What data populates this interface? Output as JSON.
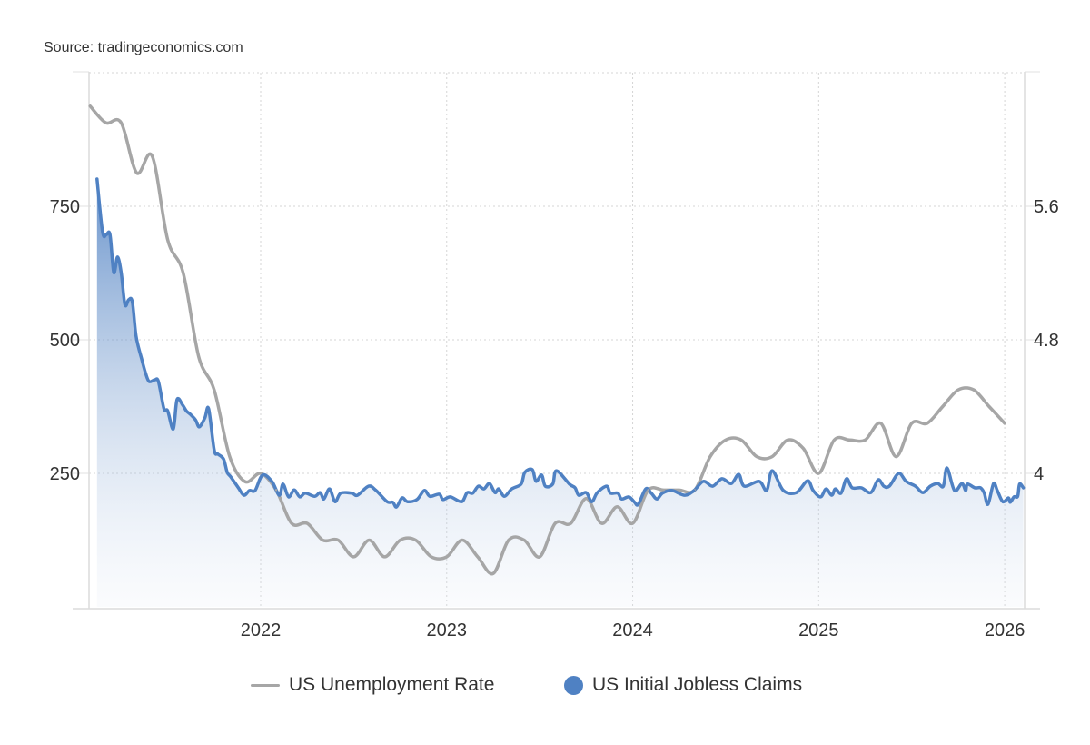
{
  "source": "Source: tradingeconomics.com",
  "chart_data": {
    "type": "line",
    "title": "",
    "xlabel": "",
    "x_ticks": [
      "2022",
      "2023",
      "2024",
      "2025",
      "2026"
    ],
    "x_range": [
      2021.077,
      2026.107
    ],
    "left_axis": {
      "ticks": [
        "250",
        "500",
        "750"
      ],
      "tick_values": [
        250,
        500,
        750
      ],
      "range": [
        0,
        1000
      ]
    },
    "right_axis": {
      "ticks": [
        "4",
        "4.8",
        "5.6"
      ],
      "tick_values": [
        4,
        4.8,
        5.6
      ],
      "range": [
        3.2,
        6.4
      ]
    },
    "grid": true,
    "legend_position": "bottom",
    "colors": {
      "unemployment": "#a6a6a6",
      "claims": "#4f81c3"
    },
    "series": [
      {
        "name": "US Unemployment Rate",
        "axis": "right",
        "style": "line",
        "months": [
          "2021-02",
          "2021-03",
          "2021-04",
          "2021-05",
          "2021-06",
          "2021-07",
          "2021-08",
          "2021-09",
          "2021-10",
          "2021-11",
          "2021-12",
          "2022-01",
          "2022-02",
          "2022-03",
          "2022-04",
          "2022-05",
          "2022-06",
          "2022-07",
          "2022-08",
          "2022-09",
          "2022-10",
          "2022-11",
          "2022-12",
          "2023-01",
          "2023-02",
          "2023-03",
          "2023-04",
          "2023-05",
          "2023-06",
          "2023-07",
          "2023-08",
          "2023-09",
          "2023-10",
          "2023-11",
          "2023-12",
          "2024-01",
          "2024-02",
          "2024-03",
          "2024-04",
          "2024-05",
          "2024-06",
          "2024-07",
          "2024-08",
          "2024-09",
          "2024-10",
          "2024-11",
          "2024-12",
          "2025-01",
          "2025-02",
          "2025-03",
          "2025-04",
          "2025-05",
          "2025-06",
          "2025-07",
          "2025-08",
          "2025-09",
          "2025-10",
          "2025-11",
          "2025-12",
          "2026-01"
        ],
        "values": [
          6.2,
          6.1,
          6.1,
          5.8,
          5.9,
          5.4,
          5.2,
          4.7,
          4.5,
          4.1,
          3.95,
          4.0,
          3.9,
          3.7,
          3.7,
          3.6,
          3.6,
          3.5,
          3.6,
          3.5,
          3.6,
          3.6,
          3.5,
          3.5,
          3.6,
          3.5,
          3.4,
          3.6,
          3.6,
          3.5,
          3.7,
          3.7,
          3.85,
          3.7,
          3.8,
          3.7,
          3.9,
          3.9,
          3.9,
          3.9,
          4.1,
          4.2,
          4.2,
          4.1,
          4.1,
          4.2,
          4.15,
          4.0,
          4.2,
          4.2,
          4.2,
          4.3,
          4.1,
          4.3,
          4.3,
          4.4,
          4.5,
          4.5,
          4.4,
          4.3
        ]
      },
      {
        "name": "US Initial Jobless Claims",
        "axis": "left",
        "style": "area",
        "x": [
          2021.12,
          2021.15,
          2021.17,
          2021.19,
          2021.21,
          2021.23,
          2021.25,
          2021.27,
          2021.29,
          2021.31,
          2021.33,
          2021.36,
          2021.38,
          2021.4,
          2021.43,
          2021.45,
          2021.48,
          2021.5,
          2021.53,
          2021.55,
          2021.58,
          2021.6,
          2021.62,
          2021.65,
          2021.67,
          2021.7,
          2021.72,
          2021.75,
          2021.77,
          2021.8,
          2021.82,
          2021.84,
          2021.88,
          2021.91,
          2021.94,
          2021.97,
          2022.01,
          2022.06,
          2022.1,
          2022.12,
          2022.15,
          2022.18,
          2022.21,
          2022.24,
          2022.29,
          2022.32,
          2022.34,
          2022.37,
          2022.4,
          2022.43,
          2022.49,
          2022.52,
          2022.58,
          2022.62,
          2022.68,
          2022.71,
          2022.73,
          2022.76,
          2022.79,
          2022.84,
          2022.88,
          2022.91,
          2022.96,
          2022.98,
          2023.02,
          2023.08,
          2023.11,
          2023.14,
          2023.17,
          2023.2,
          2023.23,
          2023.26,
          2023.28,
          2023.31,
          2023.35,
          2023.4,
          2023.42,
          2023.46,
          2023.48,
          2023.51,
          2023.53,
          2023.57,
          2023.59,
          2023.66,
          2023.69,
          2023.71,
          2023.75,
          2023.78,
          2023.81,
          2023.86,
          2023.88,
          2023.92,
          2023.94,
          2023.98,
          2024.01,
          2024.03,
          2024.07,
          2024.1,
          2024.13,
          2024.16,
          2024.21,
          2024.28,
          2024.33,
          2024.38,
          2024.43,
          2024.48,
          2024.53,
          2024.57,
          2024.6,
          2024.68,
          2024.72,
          2024.75,
          2024.81,
          2024.88,
          2024.94,
          2024.97,
          2025.01,
          2025.04,
          2025.07,
          2025.09,
          2025.12,
          2025.15,
          2025.18,
          2025.23,
          2025.28,
          2025.32,
          2025.35,
          2025.38,
          2025.43,
          2025.47,
          2025.52,
          2025.56,
          2025.6,
          2025.64,
          2025.67,
          2025.69,
          2025.73,
          2025.77,
          2025.79,
          2025.8,
          2025.84,
          2025.87,
          2025.89,
          2025.91,
          2025.94,
          2025.96,
          2025.99,
          2026.02,
          2026.03,
          2026.05,
          2026.07,
          2026.08,
          2026.1
        ],
        "values": [
          801,
          702,
          697,
          697,
          626,
          655,
          626,
          566,
          575,
          571,
          507,
          464,
          439,
          422,
          425,
          422,
          371,
          367,
          333,
          388,
          378,
          367,
          361,
          350,
          337,
          354,
          371,
          294,
          286,
          277,
          252,
          243,
          223,
          209,
          218,
          218,
          247,
          235,
          209,
          230,
          206,
          219,
          206,
          213,
          207,
          214,
          202,
          221,
          197,
          213,
          213,
          209,
          226,
          218,
          197,
          196,
          187,
          204,
          197,
          201,
          218,
          207,
          211,
          201,
          206,
          197,
          214,
          213,
          226,
          221,
          231,
          214,
          221,
          207,
          221,
          230,
          252,
          257,
          235,
          247,
          226,
          230,
          255,
          230,
          223,
          209,
          214,
          197,
          214,
          226,
          213,
          213,
          202,
          206,
          196,
          192,
          221,
          213,
          202,
          213,
          218,
          209,
          218,
          235,
          226,
          240,
          231,
          248,
          226,
          235,
          218,
          255,
          218,
          214,
          236,
          218,
          206,
          221,
          209,
          221,
          213,
          240,
          223,
          223,
          214,
          238,
          226,
          226,
          250,
          235,
          226,
          214,
          226,
          231,
          226,
          260,
          218,
          231,
          218,
          230,
          223,
          223,
          213,
          192,
          231,
          218,
          197,
          204,
          196,
          206,
          207,
          230,
          223
        ]
      }
    ]
  }
}
